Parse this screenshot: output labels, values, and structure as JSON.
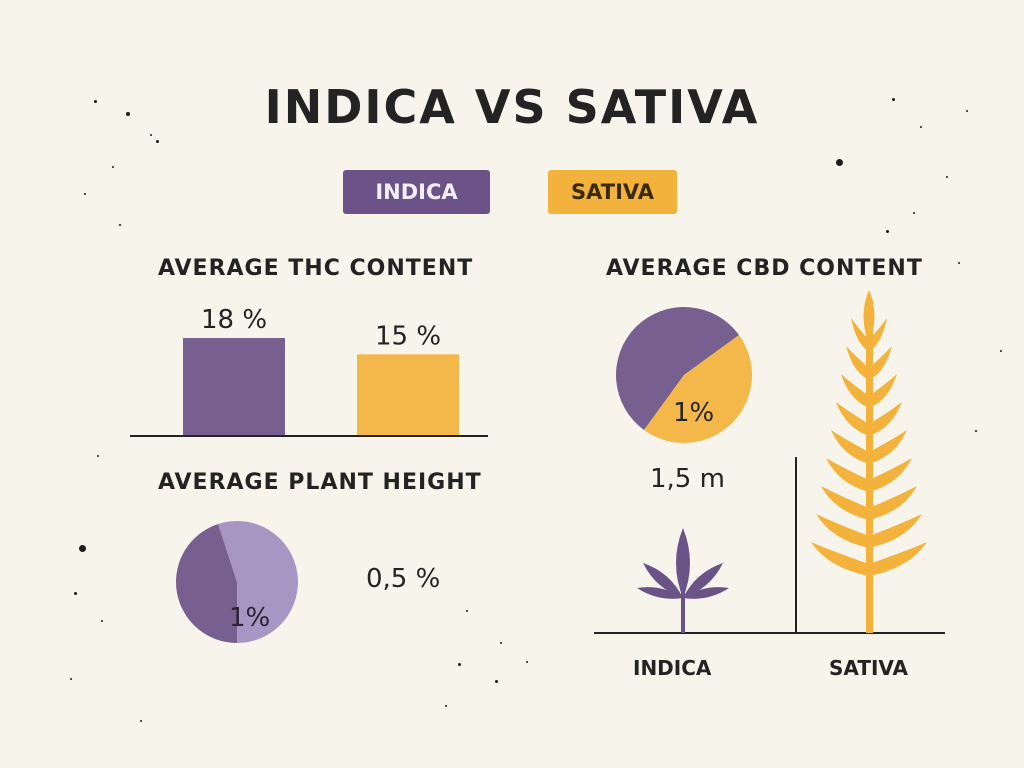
{
  "title": "INDICA VS SATIVA",
  "colors": {
    "indica": "#6b5388",
    "indica_light": "#a08cc0",
    "sativa": "#f3b23c",
    "ink": "#232323"
  },
  "legend": [
    {
      "label": "INDICA",
      "color": "#6b5388"
    },
    {
      "label": "SATIVA",
      "color": "#f3b23c"
    }
  ],
  "chart_data": [
    {
      "type": "bar",
      "title": "AVERAGE THC CONTENT",
      "categories": [
        "INDICA",
        "SATIVA"
      ],
      "values": [
        18,
        15
      ],
      "data_labels": [
        "18 %",
        "15 %"
      ],
      "ylim": [
        0,
        18
      ],
      "grid": false
    },
    {
      "type": "pie",
      "title": "AVERAGE CBD CONTENT",
      "slices": [
        {
          "name": "INDICA",
          "value": 55
        },
        {
          "name": "SATIVA",
          "value": 45
        }
      ],
      "annotation": "1%"
    },
    {
      "type": "pie",
      "title": "AVERAGE PLANT HEIGHT",
      "slices": [
        {
          "name": "INDICA",
          "value": 45
        },
        {
          "name": "INDICA",
          "value": 55
        }
      ],
      "annotation": "1%",
      "side_label": "0,5 %"
    },
    {
      "type": "bar",
      "title": "",
      "categories": [
        "INDICA",
        "SATIVA"
      ],
      "annotation": "1,5 m",
      "marks": "plant-illustrations"
    }
  ]
}
